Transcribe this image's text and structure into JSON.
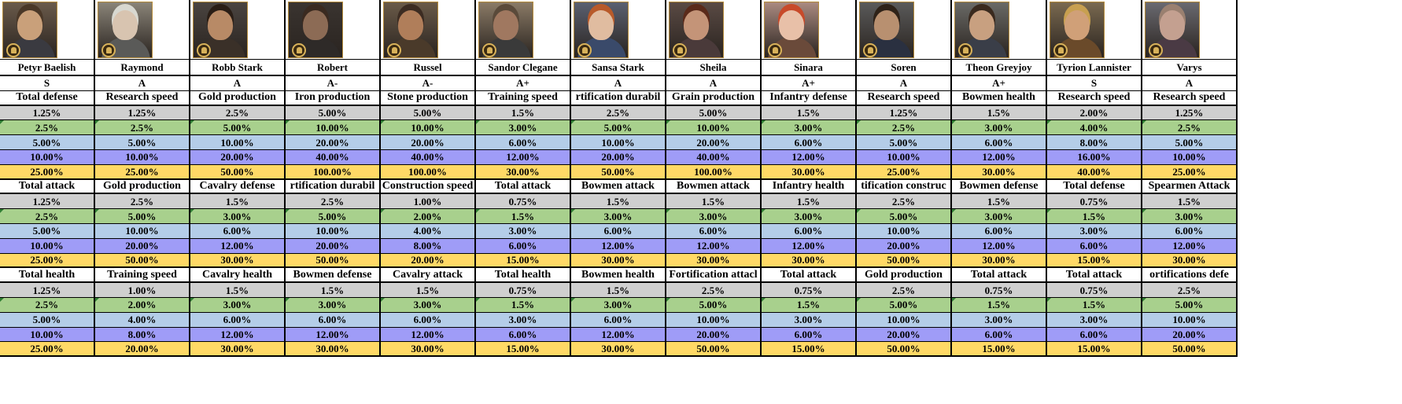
{
  "tier_colors": [
    "#cfcfcf",
    "#a8d08d",
    "#b4cde8",
    "#9f9cf7",
    "#ffd966"
  ],
  "characters": [
    {
      "name": "Petyr Baelish",
      "grade": "S",
      "portrait_icon": "petyr-baelish-portrait",
      "skills": [
        {
          "stat": "Total defense",
          "values": [
            "1.25%",
            "2.5%",
            "5.00%",
            "10.00%",
            "25.00%"
          ]
        },
        {
          "stat": "Total attack",
          "values": [
            "1.25%",
            "2.5%",
            "5.00%",
            "10.00%",
            "25.00%"
          ]
        },
        {
          "stat": "Total health",
          "values": [
            "1.25%",
            "2.5%",
            "5.00%",
            "10.00%",
            "25.00%"
          ]
        }
      ]
    },
    {
      "name": "Raymond",
      "grade": "A",
      "portrait_icon": "raymond-portrait",
      "skills": [
        {
          "stat": "Research speed",
          "values": [
            "1.25%",
            "2.5%",
            "5.00%",
            "10.00%",
            "25.00%"
          ]
        },
        {
          "stat": "Gold production",
          "values": [
            "2.5%",
            "5.00%",
            "10.00%",
            "20.00%",
            "50.00%"
          ]
        },
        {
          "stat": "Training speed",
          "values": [
            "1.00%",
            "2.00%",
            "4.00%",
            "8.00%",
            "20.00%"
          ]
        }
      ]
    },
    {
      "name": "Robb Stark",
      "grade": "A",
      "portrait_icon": "robb-stark-portrait",
      "skills": [
        {
          "stat": "Gold production",
          "values": [
            "2.5%",
            "5.00%",
            "10.00%",
            "20.00%",
            "50.00%"
          ]
        },
        {
          "stat": "Cavalry defense",
          "values": [
            "1.5%",
            "3.00%",
            "6.00%",
            "12.00%",
            "30.00%"
          ]
        },
        {
          "stat": "Cavalry health",
          "values": [
            "1.5%",
            "3.00%",
            "6.00%",
            "12.00%",
            "30.00%"
          ]
        }
      ]
    },
    {
      "name": "Robert",
      "grade": "A-",
      "portrait_icon": "robert-portrait",
      "skills": [
        {
          "stat": "Iron production",
          "values": [
            "5.00%",
            "10.00%",
            "20.00%",
            "40.00%",
            "100.00%"
          ]
        },
        {
          "stat": "rtification durabil",
          "values": [
            "2.5%",
            "5.00%",
            "10.00%",
            "20.00%",
            "50.00%"
          ]
        },
        {
          "stat": "Bowmen defense",
          "values": [
            "1.5%",
            "3.00%",
            "6.00%",
            "12.00%",
            "30.00%"
          ]
        }
      ]
    },
    {
      "name": "Russel",
      "grade": "A-",
      "portrait_icon": "russel-portrait",
      "skills": [
        {
          "stat": "Stone production",
          "values": [
            "5.00%",
            "10.00%",
            "20.00%",
            "40.00%",
            "100.00%"
          ]
        },
        {
          "stat": "Construction speed",
          "values": [
            "1.00%",
            "2.00%",
            "4.00%",
            "8.00%",
            "20.00%"
          ]
        },
        {
          "stat": "Cavalry attack",
          "values": [
            "1.5%",
            "3.00%",
            "6.00%",
            "12.00%",
            "30.00%"
          ]
        }
      ]
    },
    {
      "name": "Sandor Clegane",
      "grade": "A+",
      "portrait_icon": "sandor-clegane-portrait",
      "skills": [
        {
          "stat": "Training speed",
          "values": [
            "1.5%",
            "3.00%",
            "6.00%",
            "12.00%",
            "30.00%"
          ]
        },
        {
          "stat": "Total attack",
          "values": [
            "0.75%",
            "1.5%",
            "3.00%",
            "6.00%",
            "15.00%"
          ]
        },
        {
          "stat": "Total health",
          "values": [
            "0.75%",
            "1.5%",
            "3.00%",
            "6.00%",
            "15.00%"
          ]
        }
      ]
    },
    {
      "name": "Sansa Stark",
      "grade": "A",
      "portrait_icon": "sansa-stark-portrait",
      "skills": [
        {
          "stat": "rtification durabil",
          "values": [
            "2.5%",
            "5.00%",
            "10.00%",
            "20.00%",
            "50.00%"
          ]
        },
        {
          "stat": "Bowmen attack",
          "values": [
            "1.5%",
            "3.00%",
            "6.00%",
            "12.00%",
            "30.00%"
          ]
        },
        {
          "stat": "Bowmen health",
          "values": [
            "1.5%",
            "3.00%",
            "6.00%",
            "12.00%",
            "30.00%"
          ]
        }
      ]
    },
    {
      "name": "Sheila",
      "grade": "A",
      "portrait_icon": "sheila-portrait",
      "skills": [
        {
          "stat": "Grain production",
          "values": [
            "5.00%",
            "10.00%",
            "20.00%",
            "40.00%",
            "100.00%"
          ]
        },
        {
          "stat": "Bowmen attack",
          "values": [
            "1.5%",
            "3.00%",
            "6.00%",
            "12.00%",
            "30.00%"
          ]
        },
        {
          "stat": "Fortification attacl",
          "values": [
            "2.5%",
            "5.00%",
            "10.00%",
            "20.00%",
            "50.00%"
          ]
        }
      ]
    },
    {
      "name": "Sinara",
      "grade": "A+",
      "portrait_icon": "sinara-portrait",
      "skills": [
        {
          "stat": "Infantry defense",
          "values": [
            "1.5%",
            "3.00%",
            "6.00%",
            "12.00%",
            "30.00%"
          ]
        },
        {
          "stat": "Infantry health",
          "values": [
            "1.5%",
            "3.00%",
            "6.00%",
            "12.00%",
            "30.00%"
          ]
        },
        {
          "stat": "Total attack",
          "values": [
            "0.75%",
            "1.5%",
            "3.00%",
            "6.00%",
            "15.00%"
          ]
        }
      ]
    },
    {
      "name": "Soren",
      "grade": "A",
      "portrait_icon": "soren-portrait",
      "skills": [
        {
          "stat": "Research speed",
          "values": [
            "1.25%",
            "2.5%",
            "5.00%",
            "10.00%",
            "25.00%"
          ]
        },
        {
          "stat": "tification construc",
          "values": [
            "2.5%",
            "5.00%",
            "10.00%",
            "20.00%",
            "50.00%"
          ]
        },
        {
          "stat": "Gold production",
          "values": [
            "2.5%",
            "5.00%",
            "10.00%",
            "20.00%",
            "50.00%"
          ]
        }
      ]
    },
    {
      "name": "Theon Greyjoy",
      "grade": "A+",
      "portrait_icon": "theon-greyjoy-portrait",
      "skills": [
        {
          "stat": "Bowmen health",
          "values": [
            "1.5%",
            "3.00%",
            "6.00%",
            "12.00%",
            "30.00%"
          ]
        },
        {
          "stat": "Bowmen defense",
          "values": [
            "1.5%",
            "3.00%",
            "6.00%",
            "12.00%",
            "30.00%"
          ]
        },
        {
          "stat": "Total attack",
          "values": [
            "0.75%",
            "1.5%",
            "3.00%",
            "6.00%",
            "15.00%"
          ]
        }
      ]
    },
    {
      "name": "Tyrion Lannister",
      "grade": "S",
      "portrait_icon": "tyrion-lannister-portrait",
      "skills": [
        {
          "stat": "Research speed",
          "values": [
            "2.00%",
            "4.00%",
            "8.00%",
            "16.00%",
            "40.00%"
          ]
        },
        {
          "stat": "Total defense",
          "values": [
            "0.75%",
            "1.5%",
            "3.00%",
            "6.00%",
            "15.00%"
          ]
        },
        {
          "stat": "Total attack",
          "values": [
            "0.75%",
            "1.5%",
            "3.00%",
            "6.00%",
            "15.00%"
          ]
        }
      ]
    },
    {
      "name": "Varys",
      "grade": "A",
      "portrait_icon": "varys-portrait",
      "skills": [
        {
          "stat": "Research speed",
          "values": [
            "1.25%",
            "2.5%",
            "5.00%",
            "10.00%",
            "25.00%"
          ]
        },
        {
          "stat": "Spearmen Attack",
          "values": [
            "1.5%",
            "3.00%",
            "6.00%",
            "12.00%",
            "30.00%"
          ]
        },
        {
          "stat": "ortifications defe",
          "values": [
            "2.5%",
            "5.00%",
            "10.00%",
            "20.00%",
            "50.00%"
          ]
        }
      ]
    }
  ]
}
